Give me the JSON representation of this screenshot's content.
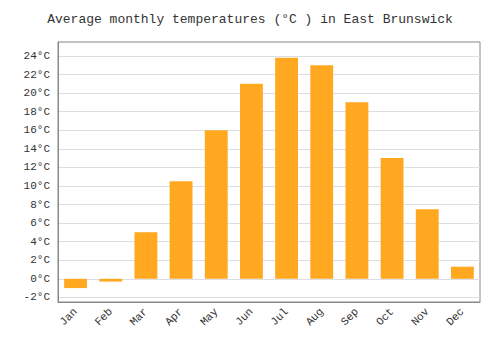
{
  "chart_data": {
    "type": "bar",
    "title": "Average monthly temperatures (°C ) in East Brunswick",
    "categories": [
      "Jan",
      "Feb",
      "Mar",
      "Apr",
      "May",
      "Jun",
      "Jul",
      "Aug",
      "Sep",
      "Oct",
      "Nov",
      "Dec"
    ],
    "values": [
      -1.0,
      -0.3,
      5.0,
      10.5,
      16.0,
      21.0,
      23.8,
      23.0,
      19.0,
      13.0,
      7.5,
      1.3
    ],
    "color": "#FFA820",
    "ylim": [
      -2.5,
      25.5
    ],
    "yticks": [
      {
        "value": -2,
        "label": "-2°C"
      },
      {
        "value": 0,
        "label": "0°C"
      },
      {
        "value": 2,
        "label": "2°C"
      },
      {
        "value": 4,
        "label": "4°C"
      },
      {
        "value": 6,
        "label": "6°C"
      },
      {
        "value": 8,
        "label": "8°C"
      },
      {
        "value": 10,
        "label": "10°C"
      },
      {
        "value": 12,
        "label": "12°C"
      },
      {
        "value": 14,
        "label": "14°C"
      },
      {
        "value": 16,
        "label": "16°C"
      },
      {
        "value": 18,
        "label": "18°C"
      },
      {
        "value": 20,
        "label": "20°C"
      },
      {
        "value": 22,
        "label": "22°C"
      },
      {
        "value": 24,
        "label": "24°C"
      }
    ],
    "grid": true
  }
}
